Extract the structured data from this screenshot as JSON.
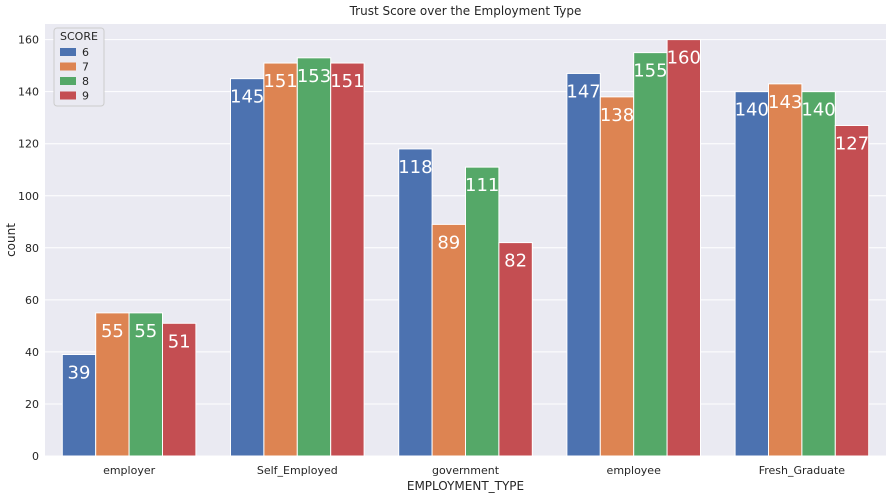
{
  "chart_data": {
    "type": "bar",
    "title": "Trust Score over the Employment Type",
    "xlabel": "EMPLOYMENT_TYPE",
    "ylabel": "count",
    "ylim": [
      0,
      166
    ],
    "yticks": [
      0,
      20,
      40,
      60,
      80,
      100,
      120,
      140,
      160
    ],
    "categories": [
      "employer",
      "Self_Employed",
      "government",
      "employee",
      "Fresh_Graduate"
    ],
    "legend": {
      "title": "SCORE",
      "placement": "top-left"
    },
    "grid": true,
    "series": [
      {
        "name": "6",
        "color": "#4c72b0",
        "values": [
          39,
          145,
          118,
          147,
          140
        ]
      },
      {
        "name": "7",
        "color": "#dd8452",
        "values": [
          55,
          151,
          89,
          138,
          143
        ]
      },
      {
        "name": "8",
        "color": "#55a868",
        "values": [
          55,
          153,
          111,
          155,
          140
        ]
      },
      {
        "name": "9",
        "color": "#c44e52",
        "values": [
          51,
          151,
          82,
          160,
          127
        ]
      }
    ]
  }
}
